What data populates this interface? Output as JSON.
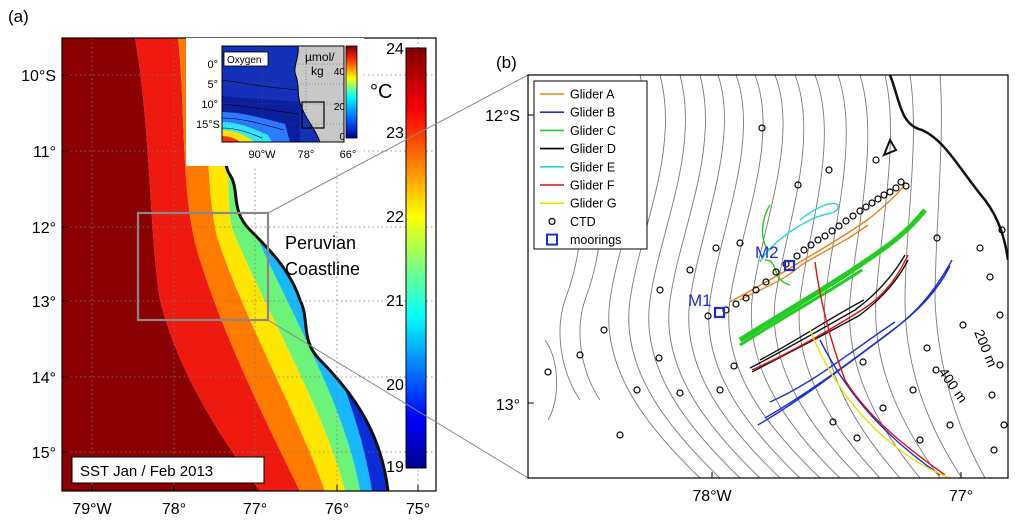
{
  "panels": {
    "a": {
      "label": "(a)",
      "lat_ticks": [
        "10°S",
        "11°",
        "12°",
        "13°",
        "14°",
        "15°"
      ],
      "lon_ticks": [
        "79°W",
        "78°",
        "77°",
        "76°",
        "75°"
      ],
      "annotation": "SST Jan / Feb 2013",
      "region_label_line1": "Peruvian",
      "region_label_line2": "Coastline"
    },
    "colorbar": {
      "unit": "°C",
      "ticks": [
        "24",
        "23",
        "22",
        "21",
        "20",
        "19"
      ],
      "min": 19,
      "max": 24
    },
    "inset": {
      "title": "Oxygen",
      "unit_line1": "µmol/",
      "unit_line2": "kg",
      "lat_ticks": [
        "0°",
        "5°",
        "10°",
        "15°S"
      ],
      "lon_ticks": [
        "90°W",
        "78°",
        "66°"
      ],
      "cbar_ticks": [
        "40",
        "20",
        "0"
      ],
      "cbar_min": 0,
      "cbar_max": 45
    },
    "b": {
      "label": "(b)",
      "lat_ticks": [
        "12°S",
        "13°"
      ],
      "lon_ticks": [
        "78°W",
        "77°"
      ],
      "contour_labels": [
        "200 m",
        "400 m"
      ],
      "mooring_labels": [
        "M1",
        "M2"
      ],
      "legend": [
        {
          "label": "Glider A",
          "color": "#e8821e",
          "kind": "line"
        },
        {
          "label": "Glider B",
          "color": "#1b2fd6",
          "kind": "line"
        },
        {
          "label": "Glider C",
          "color": "#22cc22",
          "kind": "line"
        },
        {
          "label": "Glider D",
          "color": "#000000",
          "kind": "line"
        },
        {
          "label": "Glider E",
          "color": "#22d4e0",
          "kind": "line"
        },
        {
          "label": "Glider F",
          "color": "#dd1111",
          "kind": "line"
        },
        {
          "label": "Glider G",
          "color": "#eedd00",
          "kind": "line"
        },
        {
          "label": "CTD",
          "color": "#000000",
          "kind": "circle"
        },
        {
          "label": "moorings",
          "color": "#1b2fd6",
          "kind": "square"
        }
      ]
    }
  }
}
